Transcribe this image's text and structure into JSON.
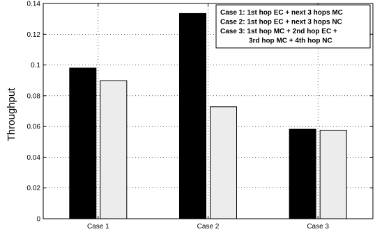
{
  "chart_data": {
    "type": "bar",
    "title": "",
    "xlabel": "",
    "ylabel": "Throughput",
    "categories": [
      "Case 1",
      "Case 2",
      "Case 3"
    ],
    "series": [
      {
        "values": [
          0.098,
          0.1335,
          0.0582
        ]
      },
      {
        "values": [
          0.0898,
          0.0728,
          0.0576
        ]
      }
    ],
    "ylim": [
      0,
      0.14
    ],
    "yticks": [
      0,
      0.02,
      0.04,
      0.06,
      0.08,
      0.1,
      0.12,
      0.14
    ],
    "ytick_labels": [
      "0",
      "0.02",
      "0.04",
      "0.06",
      "0.08",
      "0.1",
      "0.12",
      "0.14"
    ],
    "grid": true,
    "legend_position": "top-right",
    "annotation_lines": [
      "Case 1: 1st hop EC + next 3 hops MC",
      "Case 2: 1st hop EC + next 3 hops NC",
      "Case 3: 1st hop MC + 2nd hop EC +",
      "3rd hop MC + 4th hop NC"
    ],
    "colors": {
      "series_0": "#000000",
      "series_1": "#ececec",
      "edge": "#000000",
      "grid": "#000000"
    }
  }
}
